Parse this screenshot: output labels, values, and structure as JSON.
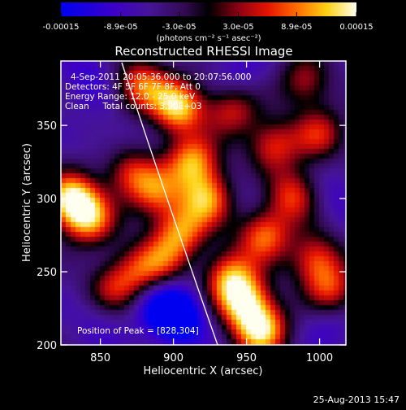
{
  "chart_data": {
    "type": "heatmap",
    "title": "Reconstructed RHESSI Image",
    "xlabel": "Heliocentric X (arcsec)",
    "ylabel": "Heliocentric Y (arcsec)",
    "xlim": [
      823,
      1018
    ],
    "ylim": [
      200,
      394
    ],
    "x_ticks": [
      850,
      900,
      950,
      1000
    ],
    "y_ticks": [
      200,
      250,
      300,
      350
    ],
    "colorbar": {
      "min": -0.00015,
      "max": 0.00015,
      "tick_values": [
        -0.00015,
        -8.93e-05,
        -3e-05,
        3e-05,
        8.93e-05,
        0.00015
      ],
      "tick_labels": [
        "-0.00015",
        "-8.9e-05",
        "-3.0e-05",
        "3.0e-05",
        "8.9e-05",
        "0.00015"
      ],
      "label": "(photons cm⁻² s⁻¹ asec⁻²)"
    },
    "annotations": {
      "time_range": "4-Sep-2011 20:05:36.000 to 20:07:56.000",
      "detectors": "Detectors: 4F 5F 6F 7F 8F, Att 0",
      "energy": "Energy Range: 12.0 - 25.0 keV",
      "clean": "Clean     Total counts: 3.90E+03",
      "peak": "Position of Peak = [828,304]"
    },
    "peak_position": [
      828,
      304
    ],
    "blobs": [
      {
        "x": 903,
        "y": 363,
        "intensity": 0.00015
      },
      {
        "x": 913,
        "y": 325,
        "intensity": 0.00012
      },
      {
        "x": 830,
        "y": 300,
        "intensity": 0.00015
      },
      {
        "x": 842,
        "y": 286,
        "intensity": 0.00011
      },
      {
        "x": 878,
        "y": 378,
        "intensity": 0.0001
      },
      {
        "x": 923,
        "y": 300,
        "intensity": 0.00012
      },
      {
        "x": 905,
        "y": 277,
        "intensity": 0.0001
      },
      {
        "x": 937,
        "y": 248,
        "intensity": 0.00011
      },
      {
        "x": 948,
        "y": 230,
        "intensity": 0.00014
      },
      {
        "x": 960,
        "y": 210,
        "intensity": 0.00015
      },
      {
        "x": 962,
        "y": 275,
        "intensity": 0.00011
      },
      {
        "x": 982,
        "y": 302,
        "intensity": 9e-05
      },
      {
        "x": 998,
        "y": 258,
        "intensity": 9e-05
      },
      {
        "x": 1008,
        "y": 236,
        "intensity": 8e-05
      },
      {
        "x": 968,
        "y": 336,
        "intensity": 8e-05
      },
      {
        "x": 1000,
        "y": 344,
        "intensity": 7e-05
      },
      {
        "x": 870,
        "y": 318,
        "intensity": 7e-05
      },
      {
        "x": 888,
        "y": 304,
        "intensity": 8e-05
      },
      {
        "x": 858,
        "y": 238,
        "intensity": 6e-05
      },
      {
        "x": 875,
        "y": 250,
        "intensity": 5e-05
      },
      {
        "x": 892,
        "y": 258,
        "intensity": 6e-05
      },
      {
        "x": 940,
        "y": 360,
        "intensity": 7e-05
      },
      {
        "x": 990,
        "y": 380,
        "intensity": 6e-05
      },
      {
        "x": 905,
        "y": 218,
        "intensity": -0.00015
      },
      {
        "x": 893,
        "y": 226,
        "intensity": -0.00013
      },
      {
        "x": 842,
        "y": 383,
        "intensity": -8e-05
      },
      {
        "x": 925,
        "y": 256,
        "intensity": -6e-05
      },
      {
        "x": 1006,
        "y": 218,
        "intensity": -8e-05
      },
      {
        "x": 951,
        "y": 302,
        "intensity": -6e-05
      },
      {
        "x": 850,
        "y": 218,
        "intensity": -7e-05
      },
      {
        "x": 945,
        "y": 384,
        "intensity": -7e-05
      },
      {
        "x": 1010,
        "y": 300,
        "intensity": -7e-05
      },
      {
        "x": 860,
        "y": 340,
        "intensity": -6e-05
      }
    ]
  },
  "footer": {
    "date": "25-Aug-2013 15:47"
  }
}
